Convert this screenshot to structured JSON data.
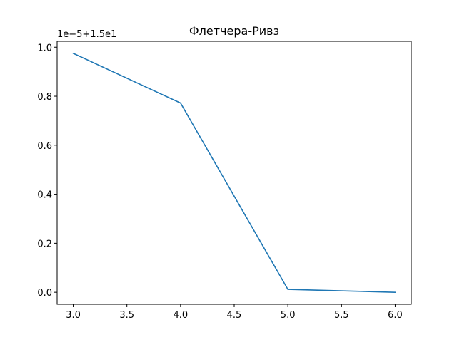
{
  "chart_data": {
    "type": "line",
    "title": "Флетчера-Ривз",
    "xlabel": "",
    "ylabel": "",
    "axis_offset_label": "1e−5+1.5e1",
    "x": [
      3.0,
      4.0,
      5.0,
      6.0
    ],
    "series": [
      {
        "values": [
          0.975,
          0.772,
          0.012,
          0.0
        ],
        "color": "#1f77b4"
      }
    ],
    "xlim": [
      2.85,
      6.15
    ],
    "ylim": [
      -0.049,
      1.024
    ],
    "x_ticks": [
      3.0,
      3.5,
      4.0,
      4.5,
      5.0,
      5.5,
      6.0
    ],
    "x_tick_labels": [
      "3.0",
      "3.5",
      "4.0",
      "4.5",
      "5.0",
      "5.5",
      "6.0"
    ],
    "y_ticks": [
      0.0,
      0.2,
      0.4,
      0.6,
      0.8,
      1.0
    ],
    "y_tick_labels": [
      "0.0",
      "0.2",
      "0.4",
      "0.6",
      "0.8",
      "1.0"
    ],
    "grid": false,
    "legend": "none"
  }
}
